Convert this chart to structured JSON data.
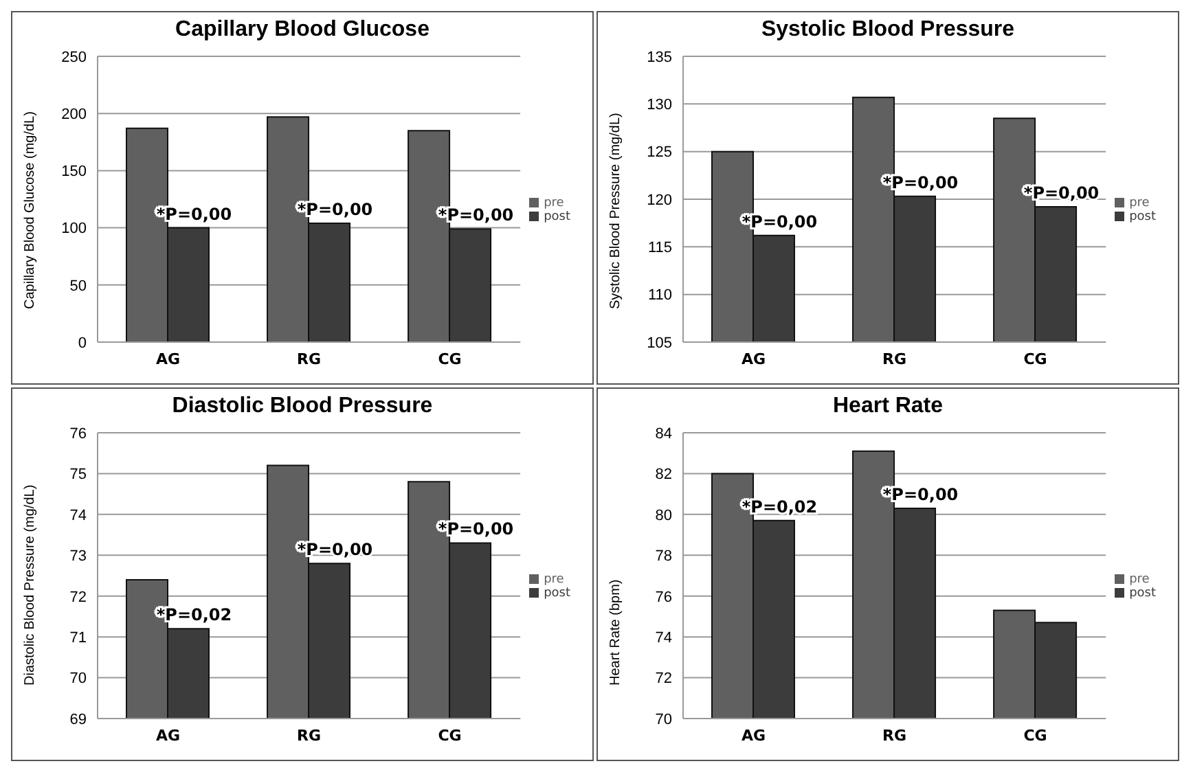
{
  "chart_data": [
    {
      "type": "bar",
      "title": "Capillary Blood Glucose",
      "ylabel": "Capillary Blood Glucose (mg/dL)",
      "categories": [
        "AG",
        "RG",
        "CG"
      ],
      "series": [
        {
          "name": "pre",
          "color": "#606060",
          "values": [
            187,
            197,
            185
          ]
        },
        {
          "name": "post",
          "color": "#3c3c3c",
          "values": [
            100,
            104,
            99
          ]
        }
      ],
      "ylim": [
        0,
        250
      ],
      "yticks": [
        0,
        50,
        100,
        150,
        200,
        250
      ],
      "grid": "y",
      "legend": "right",
      "annotations": [
        {
          "text": "*P=0,00",
          "x": "AG",
          "y": 100
        },
        {
          "text": "*P=0,00",
          "x": "RG",
          "y": 104
        },
        {
          "text": "*P=0,00",
          "x": "CG",
          "y": 99
        }
      ]
    },
    {
      "type": "bar",
      "title": "Systolic Blood Pressure",
      "ylabel": "Systolic Blood Pressure (mg/dL)",
      "categories": [
        "AG",
        "RG",
        "CG"
      ],
      "series": [
        {
          "name": "pre",
          "color": "#606060",
          "values": [
            125,
            130.7,
            128.5
          ]
        },
        {
          "name": "post",
          "color": "#3c3c3c",
          "values": [
            116.2,
            120.3,
            119.2
          ]
        }
      ],
      "ylim": [
        105,
        135
      ],
      "yticks": [
        105,
        110,
        115,
        120,
        125,
        130,
        135
      ],
      "grid": "y",
      "legend": "right",
      "annotations": [
        {
          "text": "*P=0,00",
          "x": "AG",
          "y": 116.2
        },
        {
          "text": "*P=0,00",
          "x": "RG",
          "y": 120.3
        },
        {
          "text": "*P=0,00",
          "x": "CG",
          "y": 119.2
        }
      ]
    },
    {
      "type": "bar",
      "title": "Diastolic Blood Pressure",
      "ylabel": "Diastolic Blood Pressure (mg/dL)",
      "categories": [
        "AG",
        "RG",
        "CG"
      ],
      "series": [
        {
          "name": "pre",
          "color": "#606060",
          "values": [
            72.4,
            75.2,
            74.8
          ]
        },
        {
          "name": "post",
          "color": "#3c3c3c",
          "values": [
            71.2,
            72.8,
            73.3
          ]
        }
      ],
      "ylim": [
        69,
        76
      ],
      "yticks": [
        69,
        70,
        71,
        72,
        73,
        74,
        75,
        76
      ],
      "grid": "y",
      "legend": "right",
      "annotations": [
        {
          "text": "*P=0,02",
          "x": "AG",
          "y": 71.2
        },
        {
          "text": "*P=0,00",
          "x": "RG",
          "y": 72.8
        },
        {
          "text": "*P=0,00",
          "x": "CG",
          "y": 73.3
        }
      ]
    },
    {
      "type": "bar",
      "title": "Heart Rate",
      "ylabel": "Heart Rate (bpm)",
      "categories": [
        "AG",
        "RG",
        "CG"
      ],
      "series": [
        {
          "name": "pre",
          "color": "#606060",
          "values": [
            82,
            83.1,
            75.3
          ]
        },
        {
          "name": "post",
          "color": "#3c3c3c",
          "values": [
            79.7,
            80.3,
            74.7
          ]
        }
      ],
      "ylim": [
        70,
        84
      ],
      "yticks": [
        70,
        72,
        74,
        76,
        78,
        80,
        82,
        84
      ],
      "grid": "y",
      "legend": "right",
      "annotations": [
        {
          "text": "*P=0,02",
          "x": "AG",
          "y": 79.7
        },
        {
          "text": "*P=0,00",
          "x": "RG",
          "y": 80.3
        }
      ]
    }
  ]
}
